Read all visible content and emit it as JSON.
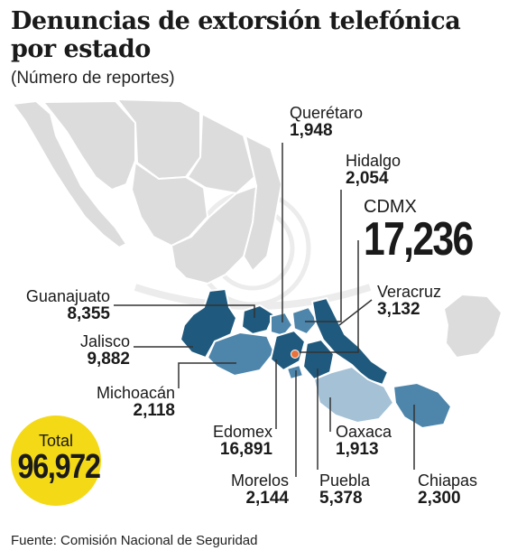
{
  "title": "Denuncias de extorsión telefónica por estado",
  "subtitle": "(Número de reportes)",
  "states": {
    "queretaro": {
      "name": "Querétaro",
      "value": "1,948"
    },
    "hidalgo": {
      "name": "Hidalgo",
      "value": "2,054"
    },
    "cdmx": {
      "name": "CDMX",
      "value": "17,236"
    },
    "veracruz": {
      "name": "Veracruz",
      "value": "3,132"
    },
    "guanajuato": {
      "name": "Guanajuato",
      "value": "8,355"
    },
    "jalisco": {
      "name": "Jalisco",
      "value": "9,882"
    },
    "michoacan": {
      "name": "Michoacán",
      "value": "2,118"
    },
    "edomex": {
      "name": "Edomex",
      "value": "16,891"
    },
    "oaxaca": {
      "name": "Oaxaca",
      "value": "1,913"
    },
    "morelos": {
      "name": "Morelos",
      "value": "2,144"
    },
    "puebla": {
      "name": "Puebla",
      "value": "5,378"
    },
    "chiapas": {
      "name": "Chiapas",
      "value": "2,300"
    }
  },
  "total": {
    "label": "Total",
    "value": "96,972"
  },
  "source": "Fuente: Comisión Nacional de Seguridad",
  "colors": {
    "base_map": "#dcdcdc",
    "dark": "#1f5a7e",
    "medium": "#4d85ab",
    "light": "#a4c1d6",
    "cdmx_dot": "#e8733a",
    "total_circle": "#f4d916",
    "leader": "#333333"
  }
}
